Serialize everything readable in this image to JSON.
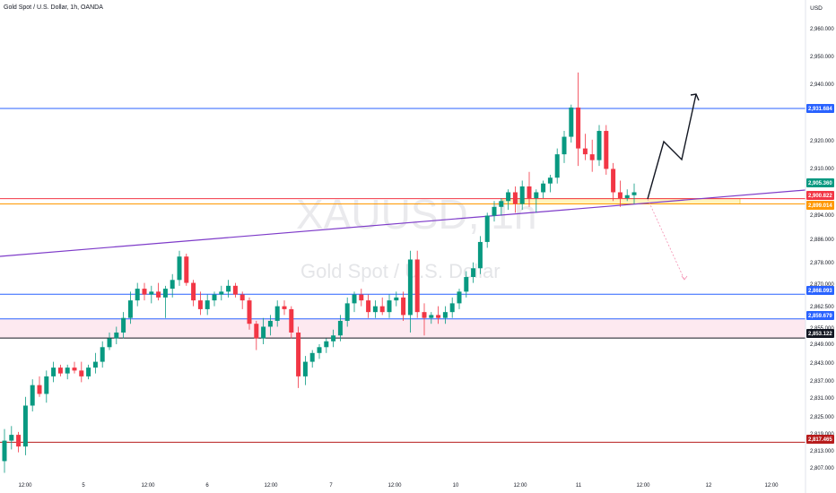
{
  "header": {
    "symbol_line": "Gold Spot / U.S. Dollar, 1h, OANDA",
    "currency": "USD"
  },
  "watermark": {
    "ticker": "XAUUSD, 1h",
    "name": "Gold Spot / U.S. Dollar"
  },
  "colors": {
    "up": "#089981",
    "down": "#f23645",
    "blue_line": "#2962ff",
    "red_line": "#f23645",
    "orange_line": "#ff9800",
    "purple_line": "#7e3bc9",
    "zone_pink": "#fce4ec",
    "zone_yellow": "#fff3b0"
  },
  "chart_data": {
    "type": "candlestick",
    "y_ticks": [
      "2,960.000",
      "2,950.000",
      "2,940.000",
      "2,920.000",
      "2,910.000",
      "2,894.000",
      "2,886.000",
      "2,878.000",
      "2,870.000",
      "2,862.500",
      "2,855.000",
      "2,849.000",
      "2,843.000",
      "2,837.000",
      "2,831.000",
      "2,825.000",
      "2,819.000",
      "2,813.000",
      "2,807.000"
    ],
    "x_ticks": [
      "12:00",
      "5",
      "12:00",
      "6",
      "12:00",
      "7",
      "12:00",
      "10",
      "12:00",
      "11",
      "12:00",
      "12",
      "12:00"
    ],
    "price_labels": [
      {
        "text": "2,931.684",
        "price": 2931.684,
        "color": "#2962ff"
      },
      {
        "text": "2,905.360",
        "price": 2905.36,
        "color": "#089981"
      },
      {
        "text": "2,900.822",
        "price": 2900.822,
        "color": "#f23645"
      },
      {
        "text": "2,899.014",
        "price": 2899.014,
        "color": "#ff9800"
      },
      {
        "text": "2,868.093",
        "price": 2868.093,
        "color": "#2962ff"
      },
      {
        "text": "2,859.679",
        "price": 2859.679,
        "color": "#2962ff"
      },
      {
        "text": "2,853.122",
        "price": 2853.122,
        "color": "#131722"
      },
      {
        "text": "2,817.465",
        "price": 2817.465,
        "color": "#b71c1c"
      }
    ],
    "horizontal_lines": [
      {
        "price": 2931.684,
        "color": "#2962ff"
      },
      {
        "price": 2900.822,
        "color": "#f23645"
      },
      {
        "price": 2899.014,
        "color": "#ff9800"
      },
      {
        "price": 2868.093,
        "color": "#2962ff"
      },
      {
        "price": 2859.679,
        "color": "#2962ff"
      },
      {
        "price": 2853.122,
        "color": "#131722"
      },
      {
        "price": 2817.465,
        "color": "#b71c1c"
      }
    ],
    "candles": [
      [
        2811,
        2822,
        2807,
        2818
      ],
      [
        2818,
        2823,
        2815,
        2820
      ],
      [
        2820,
        2821,
        2814,
        2816
      ],
      [
        2816,
        2833,
        2813,
        2830
      ],
      [
        2830,
        2839,
        2828,
        2837
      ],
      [
        2837,
        2840,
        2833,
        2834
      ],
      [
        2834,
        2842,
        2831,
        2840
      ],
      [
        2840,
        2845,
        2838,
        2843
      ],
      [
        2843,
        2844,
        2840,
        2841
      ],
      [
        2841,
        2844,
        2839,
        2843
      ],
      [
        2843,
        2845,
        2841,
        2842
      ],
      [
        2842,
        2845,
        2838,
        2840
      ],
      [
        2840,
        2844,
        2839,
        2843
      ],
      [
        2843,
        2848,
        2841,
        2845
      ],
      [
        2845,
        2852,
        2843,
        2850
      ],
      [
        2850,
        2855,
        2849,
        2853
      ],
      [
        2853,
        2857,
        2851,
        2855
      ],
      [
        2855,
        2862,
        2853,
        2860
      ],
      [
        2860,
        2869,
        2858,
        2866
      ],
      [
        2866,
        2872,
        2864,
        2870
      ],
      [
        2870,
        2872,
        2866,
        2868
      ],
      [
        2868,
        2871,
        2865,
        2869
      ],
      [
        2869,
        2872,
        2866,
        2867
      ],
      [
        2867,
        2871,
        2860,
        2870
      ],
      [
        2870,
        2875,
        2867,
        2873
      ],
      [
        2873,
        2883,
        2871,
        2881
      ],
      [
        2881,
        2882,
        2871,
        2872
      ],
      [
        2872,
        2873,
        2864,
        2866
      ],
      [
        2866,
        2869,
        2861,
        2863
      ],
      [
        2863,
        2868,
        2861,
        2866
      ],
      [
        2866,
        2869,
        2864,
        2868
      ],
      [
        2868,
        2871,
        2866,
        2869
      ],
      [
        2869,
        2873,
        2867,
        2871
      ],
      [
        2871,
        2872,
        2867,
        2868
      ],
      [
        2868,
        2869,
        2863,
        2866
      ],
      [
        2866,
        2867,
        2856,
        2858
      ],
      [
        2858,
        2859,
        2849,
        2853
      ],
      [
        2853,
        2860,
        2851,
        2857
      ],
      [
        2857,
        2861,
        2854,
        2859
      ],
      [
        2859,
        2866,
        2857,
        2864
      ],
      [
        2864,
        2866,
        2861,
        2863
      ],
      [
        2863,
        2864,
        2853,
        2855
      ],
      [
        2855,
        2857,
        2836,
        2840
      ],
      [
        2840,
        2847,
        2837,
        2845
      ],
      [
        2845,
        2849,
        2843,
        2848
      ],
      [
        2848,
        2851,
        2846,
        2850
      ],
      [
        2850,
        2853,
        2848,
        2852
      ],
      [
        2852,
        2856,
        2850,
        2854
      ],
      [
        2854,
        2861,
        2852,
        2859
      ],
      [
        2859,
        2867,
        2857,
        2865
      ],
      [
        2865,
        2869,
        2862,
        2868
      ],
      [
        2868,
        2870,
        2864,
        2866
      ],
      [
        2866,
        2868,
        2860,
        2862
      ],
      [
        2862,
        2866,
        2860,
        2864
      ],
      [
        2864,
        2867,
        2861,
        2862
      ],
      [
        2862,
        2868,
        2860,
        2866
      ],
      [
        2866,
        2869,
        2864,
        2867
      ],
      [
        2867,
        2869,
        2859,
        2861
      ],
      [
        2861,
        2883,
        2855,
        2880
      ],
      [
        2880,
        2883,
        2860,
        2862
      ],
      [
        2862,
        2865,
        2854,
        2860
      ],
      [
        2860,
        2862,
        2858,
        2861
      ],
      [
        2861,
        2864,
        2858,
        2860
      ],
      [
        2860,
        2864,
        2858,
        2862
      ],
      [
        2862,
        2867,
        2860,
        2865
      ],
      [
        2865,
        2870,
        2863,
        2869
      ],
      [
        2869,
        2876,
        2867,
        2874
      ],
      [
        2874,
        2879,
        2872,
        2877
      ],
      [
        2877,
        2888,
        2875,
        2886
      ],
      [
        2886,
        2896,
        2884,
        2895
      ],
      [
        2895,
        2900,
        2893,
        2898
      ],
      [
        2898,
        2901,
        2895,
        2900
      ],
      [
        2900,
        2904,
        2897,
        2903
      ],
      [
        2903,
        2905,
        2896,
        2899
      ],
      [
        2899,
        2907,
        2897,
        2905
      ],
      [
        2905,
        2910,
        2898,
        2901
      ],
      [
        2901,
        2904,
        2896,
        2903
      ],
      [
        2903,
        2907,
        2901,
        2906
      ],
      [
        2906,
        2909,
        2903,
        2908
      ],
      [
        2908,
        2918,
        2906,
        2916
      ],
      [
        2916,
        2924,
        2913,
        2922
      ],
      [
        2922,
        2933,
        2920,
        2932
      ],
      [
        2932,
        2944,
        2912,
        2918
      ],
      [
        2918,
        2923,
        2914,
        2916
      ],
      [
        2916,
        2921,
        2910,
        2914
      ],
      [
        2914,
        2926,
        2912,
        2924
      ],
      [
        2924,
        2926,
        2909,
        2911
      ],
      [
        2911,
        2913,
        2900,
        2903
      ],
      [
        2903,
        2907,
        2898,
        2901
      ],
      [
        2901,
        2904,
        2900,
        2902
      ],
      [
        2902,
        2906,
        2899,
        2903
      ]
    ],
    "trendline_purple": [
      [
        0,
        2881
      ],
      [
        44,
        2907
      ]
    ],
    "projection_black": [
      [
        44,
        2900.3
      ],
      [
        50,
        2921.3
      ],
      [
        58,
        2913.4
      ],
      [
        66,
        2937.6
      ]
    ],
    "projection_red_dashed": [
      [
        44,
        2900.3
      ],
      [
        52,
        2876
      ]
    ],
    "zones": [
      {
        "from": 2853.122,
        "to": 2859.679,
        "color": "#fce4ec"
      },
      {
        "from": 2899.014,
        "to": 2900.822,
        "color": "#fff3b0"
      }
    ]
  }
}
